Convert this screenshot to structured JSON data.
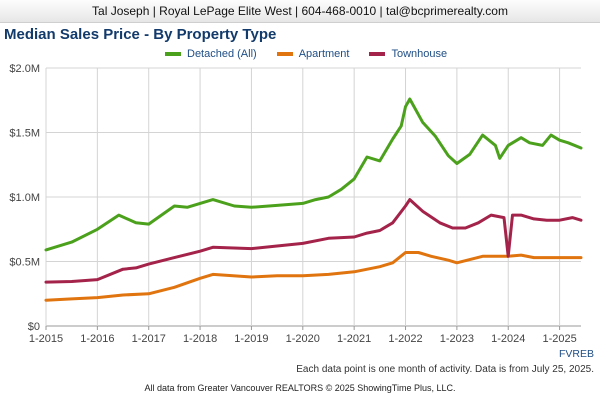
{
  "header": {
    "text": "Tal Joseph | Royal LePage Elite West | 604-468-0010 | tal@bcprimerealty.com"
  },
  "colors": {
    "detached": "#4ca11c",
    "apartment": "#e0740f",
    "townhouse": "#a4234a",
    "title": "#123a6b",
    "legend_text": "#1f4e84"
  },
  "chart_data": {
    "type": "line",
    "title": "Median Sales Price - By Property Type",
    "xlabel": "",
    "ylabel": "",
    "y_tick_labels": [
      "$0",
      "$0.5M",
      "$1.0M",
      "$1.5M",
      "$2.0M"
    ],
    "y_ticks": [
      0,
      500000,
      1000000,
      1500000,
      2000000
    ],
    "ylim": [
      0,
      2000000
    ],
    "x_tick_labels": [
      "1-2015",
      "1-2016",
      "1-2017",
      "1-2018",
      "1-2019",
      "1-2020",
      "1-2021",
      "1-2022",
      "1-2023",
      "1-2024",
      "1-2025"
    ],
    "x_start": "2015-01",
    "x_end": "2025-06",
    "grid": true,
    "legend_position": "top",
    "series": [
      {
        "name": "Detached (All)",
        "color": "#4ca11c",
        "points": [
          [
            "2015-01",
            590000
          ],
          [
            "2015-07",
            650000
          ],
          [
            "2016-01",
            750000
          ],
          [
            "2016-06",
            860000
          ],
          [
            "2016-10",
            800000
          ],
          [
            "2017-01",
            790000
          ],
          [
            "2017-07",
            930000
          ],
          [
            "2017-10",
            920000
          ],
          [
            "2018-04",
            980000
          ],
          [
            "2018-09",
            930000
          ],
          [
            "2019-01",
            920000
          ],
          [
            "2019-07",
            935000
          ],
          [
            "2020-01",
            950000
          ],
          [
            "2020-04",
            980000
          ],
          [
            "2020-07",
            1000000
          ],
          [
            "2020-10",
            1060000
          ],
          [
            "2021-01",
            1140000
          ],
          [
            "2021-04",
            1310000
          ],
          [
            "2021-07",
            1280000
          ],
          [
            "2021-10",
            1450000
          ],
          [
            "2021-12",
            1550000
          ],
          [
            "2022-01",
            1700000
          ],
          [
            "2022-02",
            1760000
          ],
          [
            "2022-05",
            1580000
          ],
          [
            "2022-08",
            1470000
          ],
          [
            "2022-11",
            1320000
          ],
          [
            "2023-01",
            1260000
          ],
          [
            "2023-04",
            1330000
          ],
          [
            "2023-07",
            1480000
          ],
          [
            "2023-10",
            1400000
          ],
          [
            "2023-11",
            1300000
          ],
          [
            "2024-01",
            1400000
          ],
          [
            "2024-04",
            1460000
          ],
          [
            "2024-06",
            1420000
          ],
          [
            "2024-09",
            1400000
          ],
          [
            "2024-11",
            1480000
          ],
          [
            "2025-01",
            1440000
          ],
          [
            "2025-03",
            1420000
          ],
          [
            "2025-06",
            1380000
          ]
        ]
      },
      {
        "name": "Apartment",
        "color": "#e0740f",
        "points": [
          [
            "2015-01",
            200000
          ],
          [
            "2015-07",
            210000
          ],
          [
            "2016-01",
            220000
          ],
          [
            "2016-07",
            240000
          ],
          [
            "2017-01",
            250000
          ],
          [
            "2017-07",
            300000
          ],
          [
            "2018-01",
            370000
          ],
          [
            "2018-04",
            400000
          ],
          [
            "2019-01",
            380000
          ],
          [
            "2019-07",
            390000
          ],
          [
            "2020-01",
            390000
          ],
          [
            "2020-07",
            400000
          ],
          [
            "2021-01",
            420000
          ],
          [
            "2021-07",
            460000
          ],
          [
            "2021-10",
            490000
          ],
          [
            "2022-01",
            570000
          ],
          [
            "2022-04",
            570000
          ],
          [
            "2022-07",
            540000
          ],
          [
            "2022-11",
            510000
          ],
          [
            "2023-01",
            490000
          ],
          [
            "2023-07",
            540000
          ],
          [
            "2024-01",
            540000
          ],
          [
            "2024-04",
            550000
          ],
          [
            "2024-07",
            530000
          ],
          [
            "2025-01",
            530000
          ],
          [
            "2025-06",
            530000
          ]
        ]
      },
      {
        "name": "Townhouse",
        "color": "#a4234a",
        "points": [
          [
            "2015-01",
            340000
          ],
          [
            "2015-07",
            345000
          ],
          [
            "2016-01",
            360000
          ],
          [
            "2016-07",
            440000
          ],
          [
            "2016-10",
            450000
          ],
          [
            "2017-01",
            480000
          ],
          [
            "2017-07",
            530000
          ],
          [
            "2018-01",
            580000
          ],
          [
            "2018-04",
            610000
          ],
          [
            "2019-01",
            600000
          ],
          [
            "2019-07",
            620000
          ],
          [
            "2020-01",
            640000
          ],
          [
            "2020-07",
            680000
          ],
          [
            "2021-01",
            690000
          ],
          [
            "2021-04",
            720000
          ],
          [
            "2021-07",
            740000
          ],
          [
            "2021-10",
            800000
          ],
          [
            "2022-01",
            930000
          ],
          [
            "2022-02",
            980000
          ],
          [
            "2022-05",
            890000
          ],
          [
            "2022-09",
            800000
          ],
          [
            "2022-12",
            760000
          ],
          [
            "2023-03",
            760000
          ],
          [
            "2023-06",
            800000
          ],
          [
            "2023-09",
            860000
          ],
          [
            "2023-12",
            840000
          ],
          [
            "2024-01",
            540000
          ],
          [
            "2024-02",
            860000
          ],
          [
            "2024-04",
            860000
          ],
          [
            "2024-07",
            830000
          ],
          [
            "2024-10",
            820000
          ],
          [
            "2025-01",
            820000
          ],
          [
            "2025-04",
            840000
          ],
          [
            "2025-06",
            820000
          ]
        ]
      }
    ]
  },
  "source_label": "FVREB",
  "note": "Each data point is one month of activity. Data is from July 25, 2025.",
  "footer": "All data from Greater Vancouver REALTORS © 2025 ShowingTime Plus, LLC."
}
